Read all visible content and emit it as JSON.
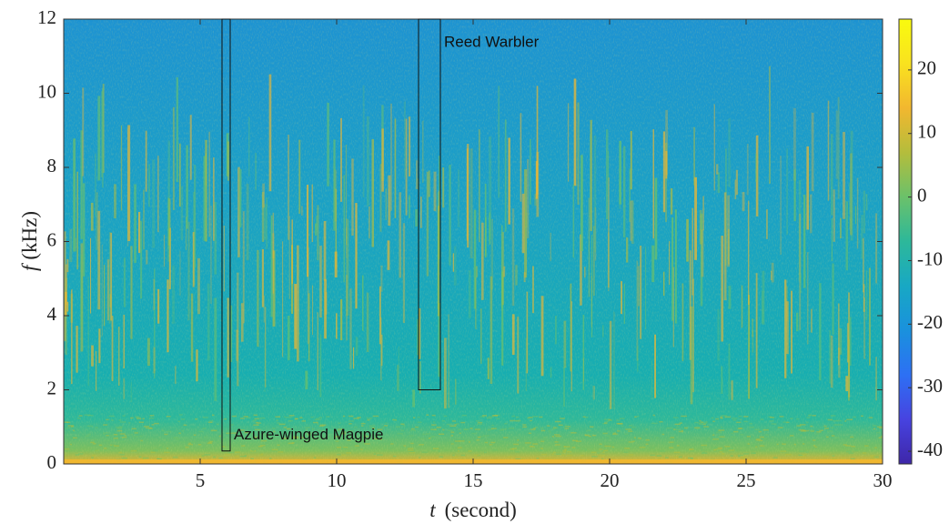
{
  "chart_data": {
    "type": "spectrogram",
    "xlabel": {
      "symbol": "t",
      "unit": "(second)"
    },
    "ylabel": {
      "symbol": "f",
      "unit": "(kHz)"
    },
    "xlim": [
      0,
      30
    ],
    "xticks": [
      5,
      10,
      15,
      20,
      25,
      30
    ],
    "ylim": [
      0,
      12
    ],
    "yticks": [
      0,
      2,
      4,
      6,
      8,
      10,
      12
    ],
    "colormap": "parula",
    "clim": [
      -42,
      28
    ],
    "cticks": [
      -40,
      -30,
      -20,
      -10,
      0,
      10,
      20
    ],
    "annotations": [
      {
        "label": "Azure-winged Magpie",
        "t": [
          5.8,
          6.1
        ],
        "f": [
          0.35,
          12
        ]
      },
      {
        "label": "Reed Warbler",
        "t": [
          13,
          13.8
        ],
        "f": [
          2,
          12
        ]
      }
    ]
  }
}
